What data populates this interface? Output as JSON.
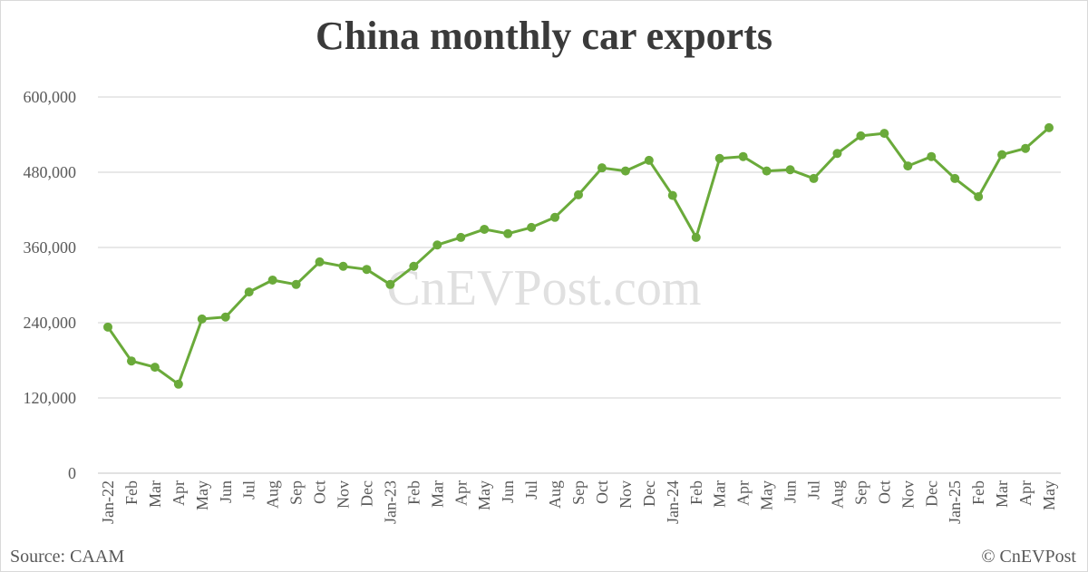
{
  "title": "China monthly car exports",
  "source": "Source: CAAM",
  "copyright": "© CnEVPost",
  "watermark": "CnEVPost.com",
  "colors": {
    "line": "#6aaa3a",
    "grid": "#d9d9d9",
    "text": "#595959",
    "title": "#3a3a3a",
    "watermark": "#e0e0e0"
  },
  "chart_data": {
    "type": "line",
    "title": "China monthly car exports",
    "xlabel": "",
    "ylabel": "",
    "ylim": [
      0,
      600000
    ],
    "yticks": [
      0,
      120000,
      240000,
      360000,
      480000,
      600000
    ],
    "ytick_labels": [
      "0",
      "120,000",
      "240,000",
      "360,000",
      "480,000",
      "600,000"
    ],
    "grid": true,
    "legend": null,
    "categories": [
      "Jan-22",
      "Feb",
      "Mar",
      "Apr",
      "May",
      "Jun",
      "Jul",
      "Aug",
      "Sep",
      "Oct",
      "Nov",
      "Dec",
      "Jan-23",
      "Feb",
      "Mar",
      "Apr",
      "May",
      "Jun",
      "Jul",
      "Aug",
      "Sep",
      "Oct",
      "Nov",
      "Dec",
      "Jan-24",
      "Feb",
      "Mar",
      "Apr",
      "May",
      "Jun",
      "Jul",
      "Aug",
      "Sep",
      "Oct",
      "Nov",
      "Dec",
      "Jan-25",
      "Feb",
      "Mar",
      "Apr",
      "May"
    ],
    "series": [
      {
        "name": "Car exports",
        "values": [
          233000,
          179000,
          169000,
          142000,
          246000,
          249000,
          289000,
          308000,
          301000,
          337000,
          330000,
          325000,
          301000,
          330000,
          364000,
          376000,
          389000,
          382000,
          392000,
          408000,
          444000,
          487000,
          482000,
          499000,
          443000,
          376000,
          502000,
          505000,
          482000,
          484000,
          470000,
          510000,
          538000,
          542000,
          490000,
          505000,
          470000,
          441000,
          508000,
          518000,
          551000
        ]
      }
    ],
    "annotations": [
      "Source: CAAM",
      "© CnEVPost",
      "CnEVPost.com (watermark)"
    ]
  }
}
